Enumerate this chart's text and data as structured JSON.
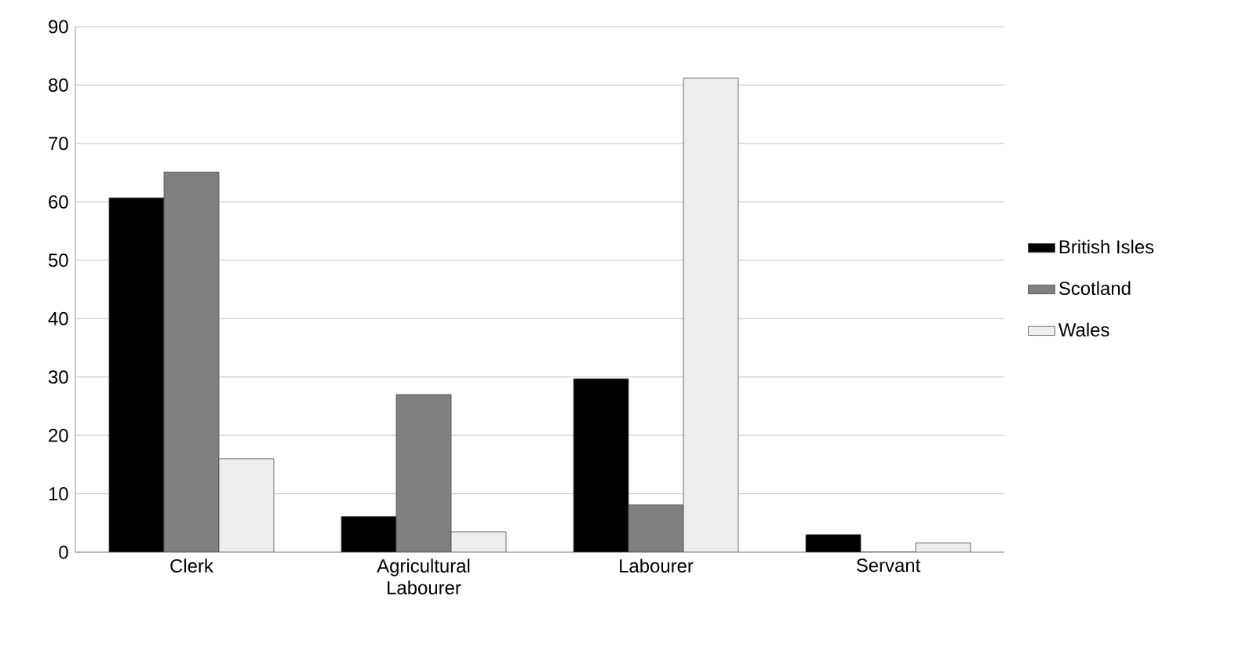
{
  "chart_data": {
    "type": "bar",
    "categories": [
      "Clerk",
      "Agricultural Labourer",
      "Labourer",
      "Servant"
    ],
    "series": [
      {
        "name": "British Isles",
        "color": "#000000",
        "values": [
          60.7,
          6.1,
          29.7,
          3.0
        ]
      },
      {
        "name": "Scotland",
        "color": "#808080",
        "values": [
          65.1,
          27.0,
          8.1,
          0
        ]
      },
      {
        "name": "Wales",
        "color": "#eeeeee",
        "values": [
          16.0,
          3.5,
          81.2,
          1.6
        ]
      }
    ],
    "ylim": [
      0,
      90
    ],
    "yticks": [
      0,
      10,
      20,
      30,
      40,
      50,
      60,
      70,
      80,
      90
    ],
    "grid": "y",
    "legend": "right"
  }
}
